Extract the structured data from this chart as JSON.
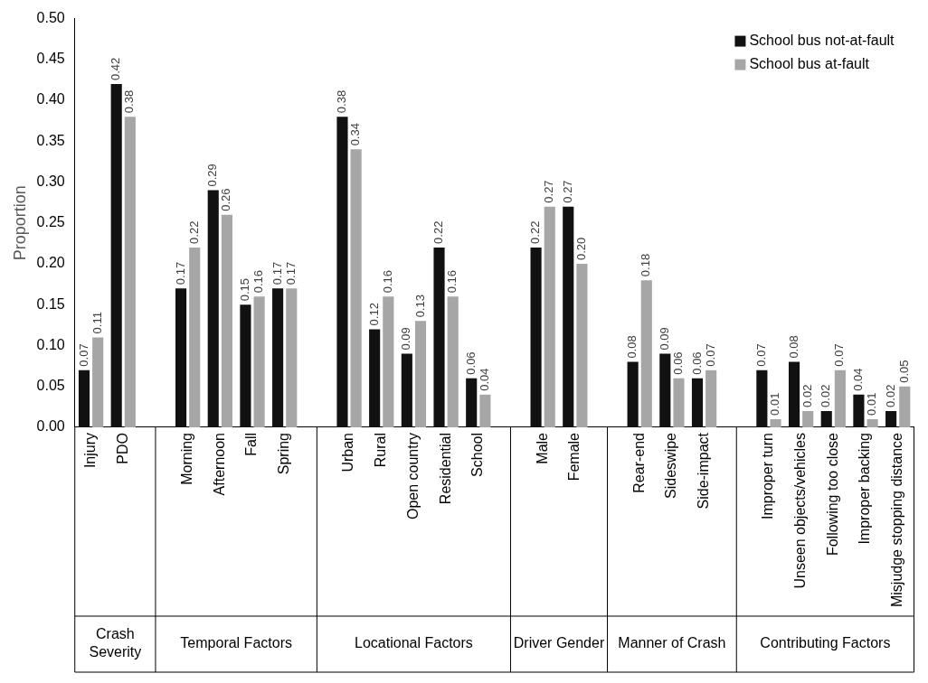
{
  "chart_data": {
    "type": "bar",
    "ylabel": "Proportion",
    "categories": [
      "Injury",
      "PDO",
      null,
      "Morning",
      "Afternoon",
      "Fall",
      "Spring",
      null,
      "Urban",
      "Rural",
      "Open country",
      "Residential",
      "School",
      null,
      "Male",
      "Female",
      null,
      "Rear-end",
      "Sideswipe",
      "Side-impact",
      null,
      "Improper turn",
      "Unseen objects/vehicles",
      "Following too close",
      "Improper backing",
      "Misjudge stopping distance"
    ],
    "series": [
      {
        "name": "School bus not-at-fault",
        "color": "#111111",
        "values": [
          0.07,
          0.42,
          null,
          0.17,
          0.29,
          0.15,
          0.17,
          null,
          0.38,
          0.12,
          0.09,
          0.22,
          0.06,
          null,
          0.22,
          0.27,
          null,
          0.08,
          0.09,
          0.06,
          null,
          0.07,
          0.08,
          0.02,
          0.04,
          0.02
        ],
        "value_labels": [
          "0.07",
          "0.42",
          null,
          "0.17",
          "0.29",
          "0.15",
          "0.17",
          null,
          "0.38",
          "0.12",
          "0.09",
          "0.22",
          "0.06",
          null,
          "0.22",
          "0.27",
          null,
          "0.08",
          "0.09",
          "0.06",
          null,
          "0.07",
          "0.08",
          "0.02",
          "0.04",
          "0.02"
        ]
      },
      {
        "name": "School bus at-fault",
        "color": "#a6a6a6",
        "values": [
          0.11,
          0.38,
          null,
          0.22,
          0.26,
          0.16,
          0.17,
          null,
          0.34,
          0.16,
          0.13,
          0.16,
          0.04,
          null,
          0.27,
          0.2,
          null,
          0.18,
          0.06,
          0.07,
          null,
          0.01,
          0.02,
          0.07,
          0.01,
          0.05
        ],
        "value_labels": [
          "0.11",
          "0.38",
          null,
          "0.22",
          "0.26",
          "0.16",
          "0.17",
          null,
          "0.34",
          "0.16",
          "0.13",
          "0.16",
          "0.04",
          null,
          "0.27",
          "0.20",
          null,
          "0.18",
          "0.06",
          "0.07",
          null,
          "0.01",
          "0.02",
          "0.07",
          "0.01",
          "0.05"
        ]
      }
    ],
    "ylim": [
      0,
      0.5
    ],
    "yticks": [
      {
        "value": 0,
        "label": "0.00"
      },
      {
        "value": 0.05,
        "label": "0.05"
      },
      {
        "value": 0.1,
        "label": "0.10"
      },
      {
        "value": 0.15,
        "label": "0.15"
      },
      {
        "value": 0.2,
        "label": "0.20"
      },
      {
        "value": 0.25,
        "label": "0.25"
      },
      {
        "value": 0.3,
        "label": "0.30"
      },
      {
        "value": 0.35,
        "label": "0.35"
      },
      {
        "value": 0.4,
        "label": "0.40"
      },
      {
        "value": 0.45,
        "label": "0.45"
      },
      {
        "value": 0.5,
        "label": "0.50"
      }
    ],
    "grid": false,
    "legend": "top right",
    "annotations": [
      "Crash Severity",
      "Temporal Factors",
      "Locational Factors",
      "Driver Gender",
      "Manner of Crash",
      "Contributing Factors"
    ]
  }
}
